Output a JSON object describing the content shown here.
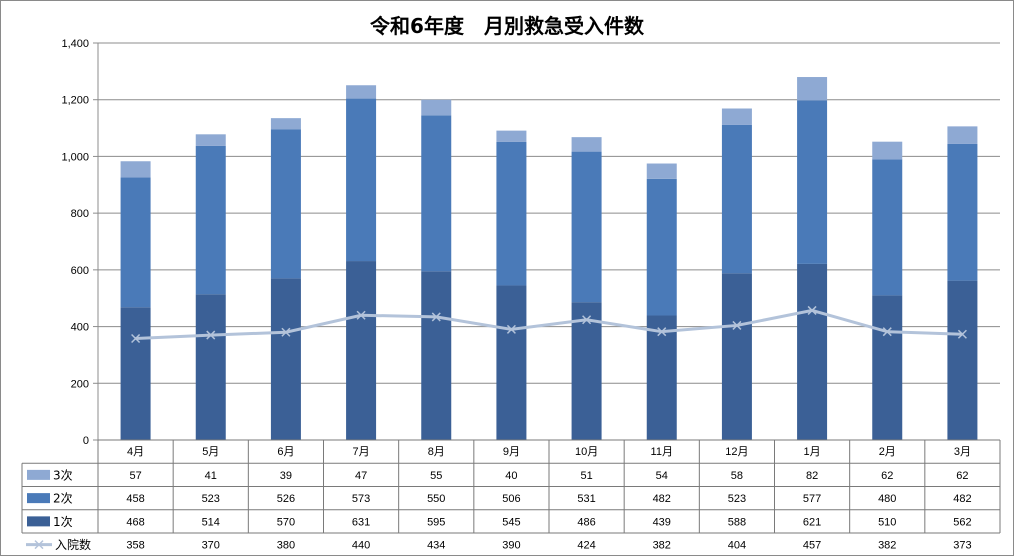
{
  "chart_data": {
    "type": "bar",
    "stacked": true,
    "title": "令和6年度　月別救急受入件数",
    "categories": [
      "4月",
      "5月",
      "6月",
      "7月",
      "8月",
      "9月",
      "10月",
      "11月",
      "12月",
      "1月",
      "2月",
      "3月"
    ],
    "ylim": [
      0,
      1400
    ],
    "yticks": [
      0,
      200,
      400,
      600,
      800,
      1000,
      1200,
      1400
    ],
    "ytick_labels": [
      "0",
      "200",
      "400",
      "600",
      "800",
      "1,000",
      "1,200",
      "1,400"
    ],
    "grid": true,
    "data_table": true,
    "series": [
      {
        "name": "3次",
        "type": "bar",
        "color": "#8ea9d3",
        "values": [
          57,
          41,
          39,
          47,
          55,
          40,
          51,
          54,
          58,
          82,
          62,
          62
        ]
      },
      {
        "name": "2次",
        "type": "bar",
        "color": "#4a7ab8",
        "values": [
          458,
          523,
          526,
          573,
          550,
          506,
          531,
          482,
          523,
          577,
          480,
          482
        ]
      },
      {
        "name": "1次",
        "type": "bar",
        "color": "#3b6096",
        "values": [
          468,
          514,
          570,
          631,
          595,
          545,
          486,
          439,
          588,
          621,
          510,
          562
        ]
      },
      {
        "name": "入院数",
        "type": "line",
        "color": "#b3c3da",
        "marker": "x",
        "values": [
          358,
          370,
          380,
          440,
          434,
          390,
          424,
          382,
          404,
          457,
          382,
          373
        ]
      }
    ]
  }
}
